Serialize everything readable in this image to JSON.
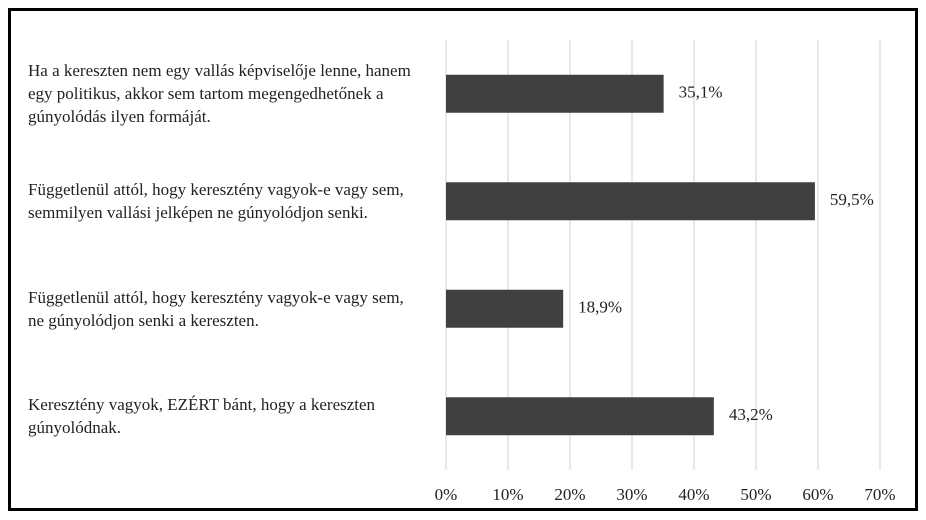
{
  "chart_data": {
    "type": "bar",
    "orientation": "horizontal",
    "categories": [
      "Ha a kereszten nem egy vallás képviselője lenne, hanem egy politikus, akkor sem tartom megengedhetőnek a gúnyolódás ilyen formáját.",
      "Függetlenül attól, hogy keresztény vagyok-e vagy sem, semmilyen vallási jelképen ne gúnyolódjon senki.",
      "Függetlenül attól, hogy keresztény vagyok-e vagy sem, ne gúnyolódjon senki a kereszten.",
      "Keresztény vagyok, EZÉRT bánt, hogy a kereszten gúnyolódnak."
    ],
    "values": [
      35.1,
      59.5,
      18.9,
      43.2
    ],
    "value_labels": [
      "35,1%",
      "59,5%",
      "18,9%",
      "43,2%"
    ],
    "color": "#404040",
    "xlim": [
      0,
      70
    ],
    "xticks": [
      {
        "value": 0,
        "label": "0%"
      },
      {
        "value": 10,
        "label": "10%"
      },
      {
        "value": 20,
        "label": "20%"
      },
      {
        "value": 30,
        "label": "30%"
      },
      {
        "value": 40,
        "label": "40%"
      },
      {
        "value": 50,
        "label": "50%"
      },
      {
        "value": 60,
        "label": "60%"
      },
      {
        "value": 70,
        "label": "70%"
      }
    ],
    "grid": true
  }
}
